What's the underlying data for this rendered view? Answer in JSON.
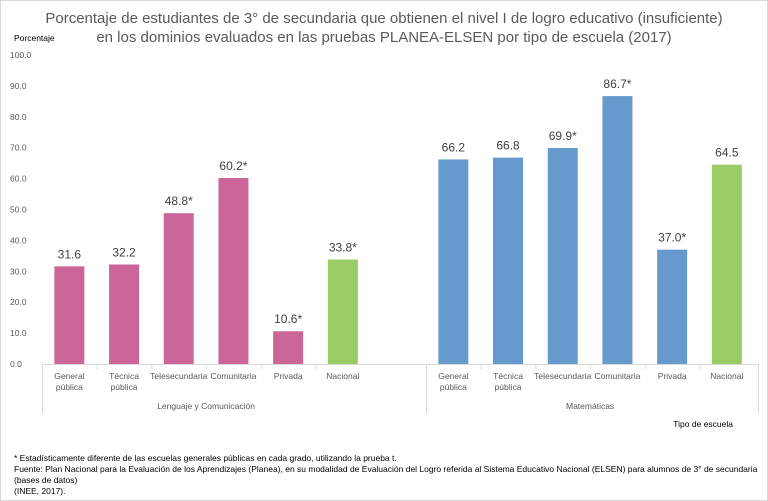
{
  "chart_data": {
    "type": "bar",
    "title_lines": [
      "Porcentaje de estudiantes de 3° de secundaria que obtienen el nivel I de logro educativo (insuficiente)",
      "en los dominios evaluados en las pruebas PLANEA-ELSEN por tipo de escuela (2017)"
    ],
    "ylabel": "Porcentaje",
    "xlabel": "Tipo de escuela",
    "ylim": [
      0,
      100
    ],
    "yticks": [
      "0.0",
      "10.0",
      "20.0",
      "30.0",
      "40.0",
      "50.0",
      "60.0",
      "70.0",
      "80.0",
      "90.0",
      "100.0"
    ],
    "grid": false,
    "groups": [
      {
        "name": "Lenguaje y Comunicación",
        "bars": [
          {
            "category": [
              "General",
              "pública"
            ],
            "value": 31.6,
            "label": "31.6",
            "color": "#cc6699"
          },
          {
            "category": [
              "Técnica",
              "pública"
            ],
            "value": 32.2,
            "label": "32.2",
            "color": "#cc6699"
          },
          {
            "category": [
              "Telesecundaria"
            ],
            "value": 48.8,
            "label": "48.8*",
            "color": "#cc6699"
          },
          {
            "category": [
              "Comunitaria"
            ],
            "value": 60.2,
            "label": "60.2*",
            "color": "#cc6699"
          },
          {
            "category": [
              "Privada"
            ],
            "value": 10.6,
            "label": "10.6*",
            "color": "#cc6699"
          },
          {
            "category": [
              "Nacional"
            ],
            "value": 33.8,
            "label": "33.8*",
            "color": "#99cc66"
          }
        ]
      },
      {
        "name": "Matemáticas",
        "bars": [
          {
            "category": [
              "General",
              "pública"
            ],
            "value": 66.2,
            "label": "66.2",
            "color": "#6699cc"
          },
          {
            "category": [
              "Técnica",
              "pública"
            ],
            "value": 66.8,
            "label": "66.8",
            "color": "#6699cc"
          },
          {
            "category": [
              "Telesecundaria"
            ],
            "value": 69.9,
            "label": "69.9*",
            "color": "#6699cc"
          },
          {
            "category": [
              "Comunitaria"
            ],
            "value": 86.7,
            "label": "86.7*",
            "color": "#6699cc"
          },
          {
            "category": [
              "Privada"
            ],
            "value": 37.0,
            "label": "37.0*",
            "color": "#6699cc"
          },
          {
            "category": [
              "Nacional"
            ],
            "value": 64.5,
            "label": "64.5",
            "color": "#99cc66"
          }
        ]
      }
    ]
  },
  "footnotes": [
    "* Estadísticamente diferente de las escuelas generales públicas en cada grado, utilizando la prueba t.",
    "Fuente: Plan Nacional para la Evaluación de los Aprendizajes (Planea), en su modalidad de Evaluación del Logro referida al Sistema Educativo Nacional (ELSEN) para alumnos de 3° de secundaria  (bases de datos)",
    "(INEE, 2017)."
  ]
}
